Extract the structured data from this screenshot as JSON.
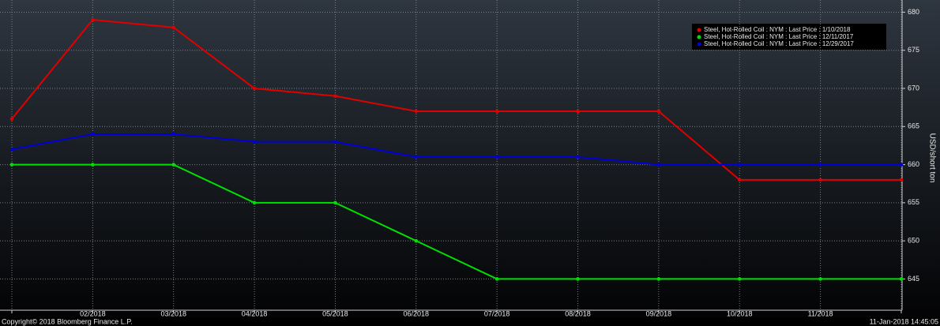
{
  "chart_data": {
    "type": "line",
    "categories": [
      null,
      "02/2018",
      "03/2018",
      "04/2018",
      "05/2018",
      "06/2018",
      "07/2018",
      "08/2018",
      "09/2018",
      "10/2018",
      "11/2018",
      null
    ],
    "series": [
      {
        "name": "Steel, Hot-Rolled Coil : NYM : Last Price : 1/10/2018",
        "color": "#e00000",
        "values": [
          666,
          679,
          678,
          670,
          669,
          667,
          667,
          667,
          667,
          658,
          658,
          658
        ]
      },
      {
        "name": "Steel, Hot-Rolled Coil : NYM : Last Price : 12/11/2017",
        "color": "#00e000",
        "values": [
          660,
          660,
          660,
          655,
          655,
          650,
          645,
          645,
          645,
          645,
          645,
          645
        ]
      },
      {
        "name": "Steel, Hot-Rolled Coil : NYM : Last Price : 12/29/2017",
        "color": "#0000d8",
        "values": [
          662,
          664,
          664,
          663,
          663,
          661,
          661,
          661,
          660,
          660,
          660,
          660
        ]
      }
    ],
    "ylim": [
      640.9,
      681.6
    ],
    "yticks": [
      645,
      650,
      655,
      660,
      665,
      670,
      675,
      680
    ],
    "ylabel": "USD/short ton",
    "grid": true,
    "legend": "top-right",
    "footer_left": "Copyright© 2018 Bloomberg Finance L.P.",
    "footer_right": "11-Jan-2018 14:45:05"
  }
}
